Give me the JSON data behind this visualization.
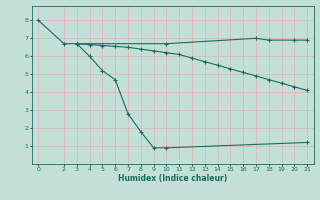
{
  "xlabel": "Humidex (Indice chaleur)",
  "bg_color": "#c2e0d8",
  "grid_color": "#ddb8b8",
  "line_color": "#1a6b60",
  "line1": {
    "x": [
      0,
      2,
      3,
      4,
      5,
      6,
      7,
      8,
      9,
      10,
      21
    ],
    "y": [
      8.0,
      6.7,
      6.7,
      6.0,
      5.2,
      4.7,
      2.8,
      1.8,
      0.9,
      0.9,
      1.2
    ]
  },
  "line2": {
    "x": [
      3,
      10,
      17,
      18,
      20,
      21
    ],
    "y": [
      6.7,
      6.7,
      7.0,
      6.9,
      6.9,
      6.9
    ]
  },
  "line3": {
    "x": [
      3,
      4,
      5,
      6,
      7,
      8,
      9,
      10,
      11,
      12,
      13,
      14,
      15,
      16,
      17,
      18,
      19,
      20,
      21
    ],
    "y": [
      6.7,
      6.65,
      6.6,
      6.55,
      6.5,
      6.4,
      6.3,
      6.2,
      6.1,
      5.9,
      5.7,
      5.5,
      5.3,
      5.1,
      4.9,
      4.7,
      4.5,
      4.3,
      4.1
    ]
  },
  "xlim": [
    -0.5,
    21.5
  ],
  "ylim": [
    0,
    8.8
  ],
  "xticks": [
    0,
    2,
    3,
    4,
    5,
    6,
    7,
    8,
    9,
    10,
    11,
    12,
    13,
    14,
    15,
    16,
    17,
    18,
    19,
    20,
    21
  ],
  "yticks": [
    1,
    2,
    3,
    4,
    5,
    6,
    7,
    8
  ]
}
